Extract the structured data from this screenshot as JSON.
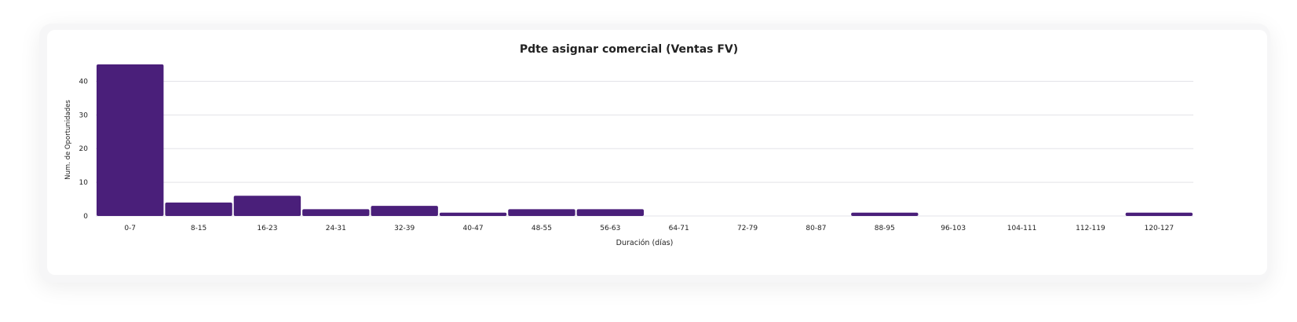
{
  "chart_data": {
    "type": "bar",
    "title": "Pdte asignar comercial (Ventas FV)",
    "xlabel": "Duración (días)",
    "ylabel": "Num. de Oportunidades",
    "categories": [
      "0-7",
      "8-15",
      "16-23",
      "24-31",
      "32-39",
      "40-47",
      "48-55",
      "56-63",
      "64-71",
      "72-79",
      "80-87",
      "88-95",
      "96-103",
      "104-111",
      "112-119",
      "120-127"
    ],
    "values": [
      45,
      4,
      6,
      2,
      3,
      1,
      2,
      2,
      0,
      0,
      0,
      1,
      0,
      0,
      0,
      1
    ],
    "ylim": [
      0,
      45
    ],
    "yticks": [
      0,
      10,
      20,
      30,
      40
    ],
    "grid": true,
    "bar_color": "#4a1f7a",
    "grid_color": "#e3e3e8"
  }
}
